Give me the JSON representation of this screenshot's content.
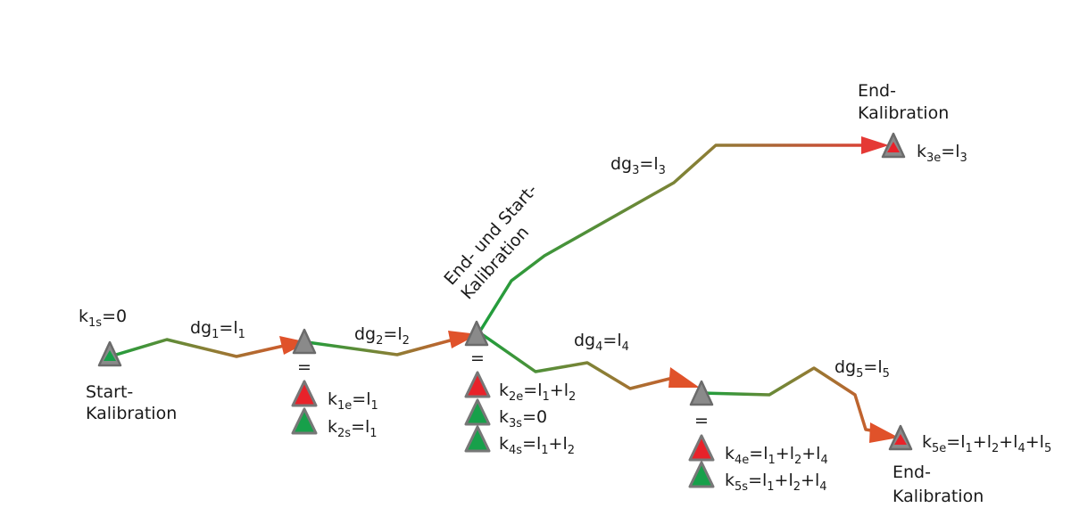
{
  "colors": {
    "green": "#1f9e3c",
    "olive": "#8a7f35",
    "orange_red": "#d9562a",
    "red": "#e53935",
    "node_gray": "#8a8a8a",
    "node_stroke": "#6b6b6b",
    "marker_red": "#e8222a",
    "marker_green": "#17a04a"
  },
  "equals_sign": "=",
  "labels": {
    "start_text_1": "Start-",
    "start_text_2": "Kalibration",
    "mid_rotated_1": "End- und Start-",
    "mid_rotated_2": "Kalibration",
    "end3_text_1": "End-",
    "end3_text_2": "Kalibration",
    "end5_text_1": "End-",
    "end5_text_2": "Kalibration"
  },
  "segments": [
    {
      "id": "dg1",
      "base": "dg",
      "sub": "1",
      "rhs": "=l",
      "rhs_sub": "1"
    },
    {
      "id": "dg2",
      "base": "dg",
      "sub": "2",
      "rhs": "=l",
      "rhs_sub": "2"
    },
    {
      "id": "dg3",
      "base": "dg",
      "sub": "3",
      "rhs": "=l",
      "rhs_sub": "3"
    },
    {
      "id": "dg4",
      "base": "dg",
      "sub": "4",
      "rhs": "=l",
      "rhs_sub": "4"
    },
    {
      "id": "dg5",
      "base": "dg",
      "sub": "5",
      "rhs": "=l",
      "rhs_sub": "5"
    }
  ],
  "formulas": {
    "k1s": [
      [
        "t",
        "k"
      ],
      [
        "s",
        "1s"
      ],
      [
        "t",
        "=0"
      ]
    ],
    "k1e": [
      [
        "t",
        "k"
      ],
      [
        "s",
        "1e"
      ],
      [
        "t",
        "=l"
      ],
      [
        "s",
        "1"
      ]
    ],
    "k2s": [
      [
        "t",
        "k"
      ],
      [
        "s",
        "2s"
      ],
      [
        "t",
        "=l"
      ],
      [
        "s",
        "1"
      ]
    ],
    "k2e": [
      [
        "t",
        "k"
      ],
      [
        "s",
        "2e"
      ],
      [
        "t",
        "=l"
      ],
      [
        "s",
        "1"
      ],
      [
        "t",
        "+l"
      ],
      [
        "s",
        "2"
      ]
    ],
    "k3s": [
      [
        "t",
        "k"
      ],
      [
        "s",
        "3s"
      ],
      [
        "t",
        "=0"
      ]
    ],
    "k4s": [
      [
        "t",
        "k"
      ],
      [
        "s",
        "4s"
      ],
      [
        "t",
        "=l"
      ],
      [
        "s",
        "1"
      ],
      [
        "t",
        "+l"
      ],
      [
        "s",
        "2"
      ]
    ],
    "k3e": [
      [
        "t",
        "k"
      ],
      [
        "s",
        "3e"
      ],
      [
        "t",
        "=l"
      ],
      [
        "s",
        "3"
      ]
    ],
    "k4e": [
      [
        "t",
        "k"
      ],
      [
        "s",
        "4e"
      ],
      [
        "t",
        "=l"
      ],
      [
        "s",
        "1"
      ],
      [
        "t",
        "+l"
      ],
      [
        "s",
        "2"
      ],
      [
        "t",
        "+l"
      ],
      [
        "s",
        "4"
      ]
    ],
    "k5s": [
      [
        "t",
        "k"
      ],
      [
        "s",
        "5s"
      ],
      [
        "t",
        "=l"
      ],
      [
        "s",
        "1"
      ],
      [
        "t",
        "+l"
      ],
      [
        "s",
        "2"
      ],
      [
        "t",
        "+l"
      ],
      [
        "s",
        "4"
      ]
    ],
    "k5e": [
      [
        "t",
        "k"
      ],
      [
        "s",
        "5e"
      ],
      [
        "t",
        "=l"
      ],
      [
        "s",
        "1"
      ],
      [
        "t",
        "+l"
      ],
      [
        "s",
        "2"
      ],
      [
        "t",
        "+l"
      ],
      [
        "s",
        "4"
      ],
      [
        "t",
        "+l"
      ],
      [
        "s",
        "5"
      ]
    ]
  }
}
